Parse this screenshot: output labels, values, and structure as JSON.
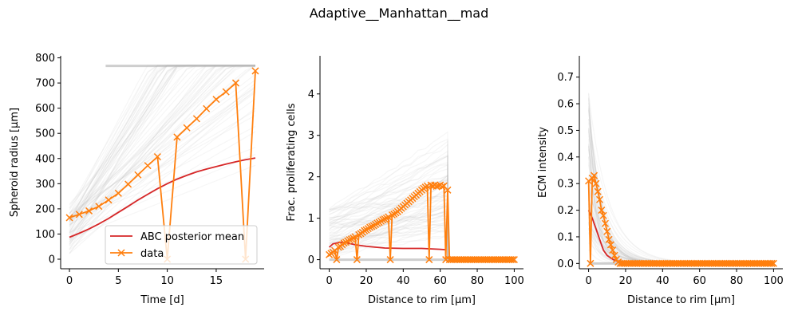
{
  "figure": {
    "suptitle": "Adaptive__Manhattan__mad"
  },
  "colors": {
    "mean": "#d62728",
    "data": "#ff7f0e",
    "samples": "#7f7f7f",
    "axis": "#000000"
  },
  "legend": {
    "mean_label": "ABC posterior mean",
    "data_label": "data",
    "location": "lower-right of first panel"
  },
  "chart_data": [
    {
      "type": "line",
      "xlabel": "Time [d]",
      "ylabel": "Spheroid radius [μm]",
      "xlim": [
        -0.9,
        19.9
      ],
      "ylim": [
        -38,
        808
      ],
      "xticks": [
        0,
        5,
        10,
        15
      ],
      "yticks": [
        0,
        100,
        200,
        300,
        400,
        500,
        600,
        700,
        800
      ],
      "grid": false,
      "series": [
        {
          "name": "ABC posterior mean",
          "x": [
            0,
            1,
            2,
            3,
            4,
            5,
            6,
            7,
            8,
            9,
            10,
            11,
            12,
            13,
            14,
            15,
            16,
            17,
            18,
            19
          ],
          "y": [
            87,
            103,
            120,
            140,
            162,
            186,
            210,
            235,
            258,
            280,
            300,
            318,
            333,
            347,
            358,
            368,
            378,
            387,
            395,
            402
          ]
        },
        {
          "name": "data",
          "x": [
            0,
            1,
            2,
            3,
            4,
            5,
            6,
            7,
            8,
            9,
            10,
            11,
            12,
            13,
            14,
            15,
            16,
            17,
            18,
            19
          ],
          "y": [
            165,
            178,
            192,
            210,
            235,
            262,
            298,
            335,
            372,
            407,
            0,
            485,
            522,
            558,
            598,
            635,
            665,
            700,
            0,
            748
          ]
        }
      ]
    },
    {
      "type": "line",
      "xlabel": "Distance to rim [μm]",
      "ylabel": "Frac. proliferating cells",
      "xlim": [
        -5,
        105
      ],
      "ylim": [
        -0.22,
        4.92
      ],
      "xticks": [
        0,
        20,
        40,
        60,
        80,
        100
      ],
      "yticks": [
        0,
        1,
        2,
        3,
        4
      ],
      "grid": false,
      "series": [
        {
          "name": "ABC posterior mean",
          "x": [
            0,
            2,
            4,
            6,
            8,
            10,
            14,
            20,
            30,
            40,
            50,
            60,
            63
          ],
          "y": [
            0.3,
            0.38,
            0.4,
            0.42,
            0.42,
            0.4,
            0.36,
            0.32,
            0.28,
            0.27,
            0.27,
            0.25,
            0.24
          ]
        },
        {
          "name": "data",
          "x": [
            0,
            1,
            2,
            3,
            4,
            5,
            6,
            7,
            8,
            9,
            10,
            11,
            12,
            13,
            14,
            15,
            16,
            17,
            18,
            19,
            20,
            21,
            22,
            23,
            24,
            25,
            26,
            27,
            28,
            29,
            30,
            31,
            32,
            33,
            34,
            35,
            36,
            37,
            38,
            39,
            40,
            41,
            42,
            43,
            44,
            45,
            46,
            47,
            48,
            49,
            50,
            51,
            52,
            53,
            54,
            55,
            56,
            57,
            58,
            59,
            60,
            61,
            62,
            63,
            64,
            65,
            66,
            67,
            68,
            69,
            70,
            71,
            72,
            73,
            74,
            75,
            76,
            77,
            78,
            79,
            80,
            81,
            82,
            83,
            84,
            85,
            86,
            87,
            88,
            89,
            90,
            91,
            92,
            93,
            94,
            95,
            96,
            97,
            98,
            99,
            100
          ],
          "y": [
            0.12,
            0.15,
            0.18,
            0.22,
            0,
            0.3,
            0.32,
            0.36,
            0.4,
            0.42,
            0.45,
            0.48,
            0.5,
            0.52,
            0.55,
            0,
            0.6,
            0.63,
            0.66,
            0.7,
            0.72,
            0.75,
            0.78,
            0.8,
            0.82,
            0.85,
            0.88,
            0.9,
            0.93,
            0.96,
            0.98,
            1.0,
            1.03,
            0,
            1.08,
            1.1,
            1.13,
            1.16,
            1.2,
            1.24,
            1.28,
            1.32,
            1.36,
            1.4,
            1.44,
            1.48,
            1.52,
            1.56,
            1.6,
            1.64,
            1.68,
            1.72,
            1.75,
            1.78,
            0,
            1.8,
            1.78,
            1.8,
            1.77,
            1.78,
            1.8,
            1.76,
            1.78,
            0,
            1.68,
            0,
            0,
            0,
            0,
            0,
            0,
            0,
            0,
            0,
            0,
            0,
            0,
            0,
            0,
            0,
            0,
            0,
            0,
            0,
            0,
            0,
            0,
            0,
            0,
            0,
            0,
            0,
            0,
            0,
            0,
            0,
            0,
            0,
            0,
            0,
            0
          ]
        }
      ]
    },
    {
      "type": "line",
      "xlabel": "Distance to rim [μm]",
      "ylabel": "ECM intensity",
      "xlim": [
        -5,
        105
      ],
      "ylim": [
        -0.02,
        0.78
      ],
      "xticks": [
        0,
        20,
        40,
        60,
        80,
        100
      ],
      "yticks": [
        0.0,
        0.1,
        0.2,
        0.3,
        0.4,
        0.5,
        0.6,
        0.7
      ],
      "grid": false,
      "series": [
        {
          "name": "ABC posterior mean",
          "x": [
            0,
            2,
            4,
            6,
            8,
            10,
            12,
            14,
            16,
            18,
            20,
            25,
            30,
            40,
            60,
            80,
            100
          ],
          "y": [
            0.2,
            0.17,
            0.13,
            0.09,
            0.05,
            0.03,
            0.02,
            0.012,
            0.008,
            0.005,
            0.003,
            0.001,
            0,
            0,
            0,
            0,
            0
          ]
        },
        {
          "name": "data",
          "x": [
            0,
            1,
            2,
            3,
            4,
            5,
            6,
            7,
            8,
            9,
            10,
            11,
            12,
            13,
            14,
            15,
            16,
            17,
            18,
            19,
            20,
            21,
            22,
            23,
            24,
            25,
            26,
            27,
            28,
            29,
            30,
            31,
            32,
            33,
            34,
            35,
            36,
            37,
            38,
            39,
            40,
            41,
            42,
            43,
            44,
            45,
            46,
            47,
            48,
            49,
            50,
            51,
            52,
            53,
            54,
            55,
            56,
            57,
            58,
            59,
            60,
            61,
            62,
            63,
            64,
            65,
            66,
            67,
            68,
            69,
            70,
            71,
            72,
            73,
            74,
            75,
            76,
            77,
            78,
            79,
            80,
            81,
            82,
            83,
            84,
            85,
            86,
            87,
            88,
            89,
            90,
            91,
            92,
            93,
            94,
            95,
            96,
            97,
            98,
            99,
            100
          ],
          "y": [
            0.31,
            0,
            0.32,
            0.33,
            0.3,
            0.27,
            0.24,
            0.2,
            0.18,
            0.15,
            0.12,
            0.09,
            0.07,
            0.05,
            0.03,
            0.015,
            0.005,
            0,
            0,
            0,
            0,
            0,
            0,
            0,
            0,
            0,
            0,
            0,
            0,
            0,
            0,
            0,
            0,
            0,
            0,
            0,
            0,
            0,
            0,
            0,
            0,
            0,
            0,
            0,
            0,
            0,
            0,
            0,
            0,
            0,
            0,
            0,
            0,
            0,
            0,
            0,
            0,
            0,
            0,
            0,
            0,
            0,
            0,
            0,
            0,
            0,
            0,
            0,
            0,
            0,
            0,
            0,
            0,
            0,
            0,
            0,
            0,
            0,
            0,
            0,
            0,
            0,
            0,
            0,
            0,
            0,
            0,
            0,
            0,
            0,
            0,
            0,
            0,
            0,
            0,
            0,
            0,
            0,
            0,
            0,
            0
          ]
        }
      ]
    }
  ]
}
